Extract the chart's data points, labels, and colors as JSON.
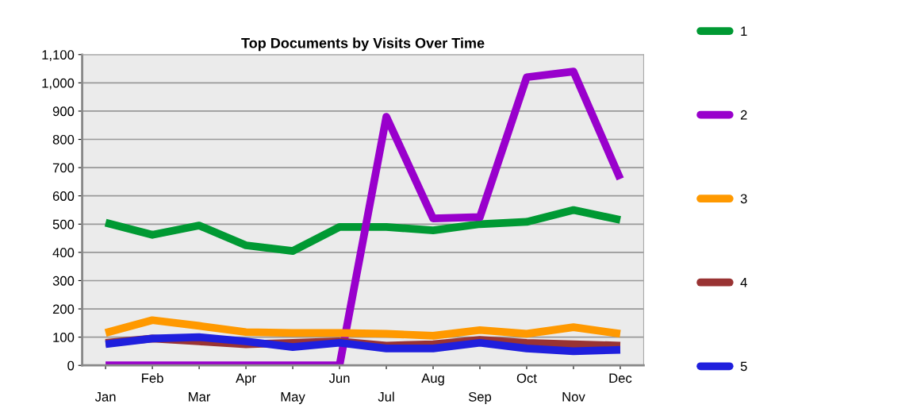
{
  "chart_data": {
    "type": "line",
    "title": "Top Documents by Visits Over Time",
    "categories": [
      "Jan",
      "Feb",
      "Mar",
      "Apr",
      "May",
      "Jun",
      "Jul",
      "Aug",
      "Sep",
      "Oct",
      "Nov",
      "Dec"
    ],
    "series": [
      {
        "name": "1",
        "color": "#009933",
        "values": [
          505,
          462,
          495,
          425,
          405,
          490,
          490,
          478,
          500,
          508,
          550,
          515
        ]
      },
      {
        "name": "2",
        "color": "#9900cc",
        "values": [
          0,
          0,
          0,
          0,
          0,
          0,
          880,
          520,
          525,
          1020,
          1040,
          660
        ]
      },
      {
        "name": "3",
        "color": "#ff9900",
        "values": [
          115,
          160,
          140,
          118,
          115,
          115,
          112,
          105,
          125,
          112,
          135,
          112
        ]
      },
      {
        "name": "4",
        "color": "#993333",
        "values": [
          80,
          95,
          85,
          75,
          80,
          85,
          70,
          75,
          90,
          80,
          75,
          70
        ]
      },
      {
        "name": "5",
        "color": "#1f1fdd",
        "values": [
          75,
          95,
          100,
          85,
          65,
          80,
          60,
          60,
          80,
          60,
          50,
          55
        ]
      }
    ],
    "ylim": [
      0,
      1100
    ],
    "yticks": [
      0,
      100,
      200,
      300,
      400,
      500,
      600,
      700,
      800,
      900,
      {
        "value": 1000,
        "label": "1,000"
      },
      {
        "value": 1100,
        "label": "1,100"
      }
    ],
    "grid": "y",
    "legend": "right",
    "marker": "none",
    "line_style": "solid"
  }
}
